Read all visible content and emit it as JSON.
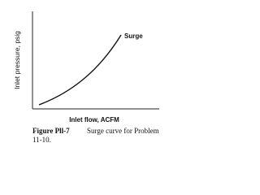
{
  "figure": {
    "y_label": "Inlet pressure, psig",
    "x_label": "Inlet flow, ACFM",
    "curve_label": "Surge",
    "caption": {
      "number": "Figure Pll-7",
      "text": "Surge curve for Problem",
      "continuation": "11-10."
    }
  }
}
